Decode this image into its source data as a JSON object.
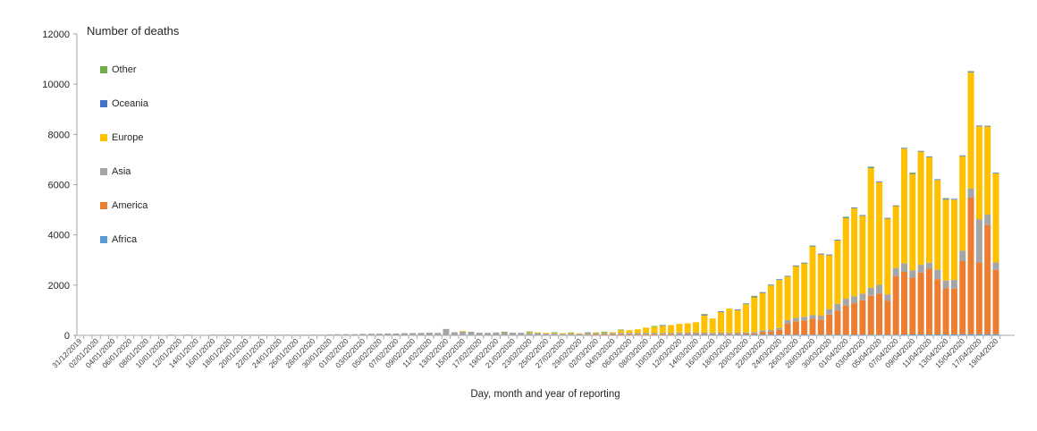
{
  "legend": {
    "title": "Number of deaths",
    "items": [
      {
        "label": "Other",
        "color": "#70AD47"
      },
      {
        "label": "Oceania",
        "color": "#4472C4"
      },
      {
        "label": "Europe",
        "color": "#FFC000"
      },
      {
        "label": "Asia",
        "color": "#A5A5A5"
      },
      {
        "label": "America",
        "color": "#ED7D31"
      },
      {
        "label": "Africa",
        "color": "#5B9BD5"
      }
    ]
  },
  "axes": {
    "x_title": "Day, month and year of reporting",
    "axis_color": "#A6A6A6",
    "tick_label_color": "#404040"
  },
  "chart_data": {
    "type": "bar",
    "stacked": true,
    "title": "Number of deaths",
    "xlabel": "Day, month and year of reporting",
    "ylabel": "",
    "ylim": [
      0,
      12000
    ],
    "y_ticks": [
      0,
      2000,
      4000,
      6000,
      8000,
      10000,
      12000
    ],
    "grid": false,
    "legend_position": "top-left",
    "x_label_every": 2,
    "categories": [
      "31/12/2019",
      "01/01/2020",
      "02/01/2020",
      "03/01/2020",
      "04/01/2020",
      "05/01/2020",
      "06/01/2020",
      "07/01/2020",
      "08/01/2020",
      "09/01/2020",
      "10/01/2020",
      "11/01/2020",
      "12/01/2020",
      "13/01/2020",
      "14/01/2020",
      "15/01/2020",
      "16/01/2020",
      "17/01/2020",
      "18/01/2020",
      "19/01/2020",
      "20/01/2020",
      "21/01/2020",
      "22/01/2020",
      "23/01/2020",
      "24/01/2020",
      "25/01/2020",
      "26/01/2020",
      "27/01/2020",
      "28/01/2020",
      "29/01/2020",
      "30/01/2020",
      "31/01/2020",
      "01/02/2020",
      "02/02/2020",
      "03/02/2020",
      "04/02/2020",
      "05/02/2020",
      "06/02/2020",
      "07/02/2020",
      "08/02/2020",
      "09/02/2020",
      "10/02/2020",
      "11/02/2020",
      "12/02/2020",
      "13/02/2020",
      "14/02/2020",
      "15/02/2020",
      "16/02/2020",
      "17/02/2020",
      "18/02/2020",
      "19/02/2020",
      "20/02/2020",
      "21/02/2020",
      "22/02/2020",
      "23/02/2020",
      "24/02/2020",
      "25/02/2020",
      "26/02/2020",
      "27/02/2020",
      "28/02/2020",
      "29/02/2020",
      "01/03/2020",
      "02/03/2020",
      "03/03/2020",
      "04/03/2020",
      "05/03/2020",
      "06/03/2020",
      "07/03/2020",
      "08/03/2020",
      "09/03/2020",
      "10/03/2020",
      "11/03/2020",
      "12/03/2020",
      "13/03/2020",
      "14/03/2020",
      "15/03/2020",
      "16/03/2020",
      "17/03/2020",
      "18/03/2020",
      "19/03/2020",
      "20/03/2020",
      "21/03/2020",
      "22/03/2020",
      "23/03/2020",
      "24/03/2020",
      "25/03/2020",
      "26/03/2020",
      "27/03/2020",
      "28/03/2020",
      "29/03/2020",
      "30/03/2020",
      "31/03/2020",
      "01/04/2020",
      "02/04/2020",
      "03/04/2020",
      "04/04/2020",
      "05/04/2020",
      "06/04/2020",
      "07/04/2020",
      "08/04/2020",
      "09/04/2020",
      "10/04/2020",
      "11/04/2020",
      "12/04/2020",
      "13/04/2020",
      "14/04/2020",
      "15/04/2020",
      "16/04/2020",
      "17/04/2020",
      "18/04/2020",
      "19/04/2020"
    ],
    "series": [
      {
        "name": "Africa",
        "color": "#5B9BD5",
        "values": [
          0,
          0,
          0,
          0,
          0,
          0,
          0,
          0,
          0,
          0,
          0,
          0,
          0,
          0,
          0,
          0,
          0,
          0,
          0,
          0,
          0,
          0,
          0,
          0,
          0,
          0,
          0,
          0,
          0,
          0,
          0,
          0,
          0,
          0,
          0,
          0,
          0,
          0,
          0,
          0,
          0,
          0,
          0,
          0,
          0,
          0,
          0,
          0,
          0,
          0,
          0,
          0,
          0,
          0,
          0,
          0,
          0,
          0,
          0,
          0,
          0,
          0,
          0,
          0,
          0,
          0,
          0,
          0,
          0,
          0,
          0,
          0,
          1,
          1,
          2,
          2,
          2,
          3,
          3,
          3,
          4,
          3,
          4,
          5,
          6,
          8,
          10,
          10,
          12,
          12,
          15,
          15,
          18,
          20,
          22,
          25,
          25,
          25,
          30,
          30,
          35,
          35,
          35,
          35,
          35,
          40,
          40,
          45,
          45,
          50,
          45
        ]
      },
      {
        "name": "America",
        "color": "#ED7D31",
        "values": [
          0,
          0,
          0,
          0,
          0,
          0,
          0,
          0,
          0,
          0,
          0,
          0,
          0,
          0,
          0,
          0,
          0,
          0,
          0,
          0,
          0,
          0,
          0,
          0,
          0,
          0,
          0,
          0,
          0,
          0,
          0,
          0,
          0,
          0,
          0,
          0,
          0,
          0,
          0,
          0,
          0,
          0,
          0,
          0,
          0,
          0,
          0,
          0,
          0,
          0,
          0,
          0,
          0,
          0,
          0,
          0,
          0,
          0,
          0,
          0,
          0,
          0,
          1,
          2,
          3,
          4,
          4,
          4,
          5,
          4,
          5,
          8,
          6,
          8,
          10,
          13,
          13,
          18,
          22,
          28,
          42,
          52,
          110,
          125,
          195,
          445,
          530,
          570,
          635,
          600,
          800,
          950,
          1155,
          1250,
          1370,
          1545,
          1630,
          1345,
          2320,
          2500,
          2260,
          2465,
          2620,
          2200,
          1845,
          1820,
          2915,
          5440,
          2855,
          4340,
          2560
        ]
      },
      {
        "name": "Asia",
        "color": "#A5A5A5",
        "values": [
          0,
          0,
          0,
          0,
          0,
          0,
          0,
          0,
          0,
          0,
          0,
          1,
          0,
          1,
          0,
          0,
          2,
          1,
          1,
          3,
          4,
          6,
          9,
          8,
          16,
          15,
          15,
          25,
          25,
          26,
          38,
          43,
          46,
          45,
          58,
          64,
          66,
          72,
          73,
          86,
          89,
          97,
          108,
          97,
          254,
          122,
          142,
          142,
          105,
          98,
          115,
          116,
          107,
          104,
          96,
          88,
          68,
          64,
          60,
          56,
          54,
          58,
          60,
          60,
          65,
          65,
          70,
          65,
          70,
          60,
          65,
          60,
          55,
          50,
          55,
          50,
          45,
          50,
          45,
          50,
          45,
          50,
          55,
          60,
          70,
          130,
          140,
          140,
          140,
          155,
          215,
          275,
          275,
          275,
          260,
          320,
          355,
          260,
          335,
          340,
          300,
          310,
          240,
          380,
          300,
          345,
          415,
          355,
          1725,
          415,
          300
        ]
      },
      {
        "name": "Europe",
        "color": "#FFC000",
        "values": [
          0,
          0,
          0,
          0,
          0,
          0,
          0,
          0,
          0,
          0,
          0,
          0,
          0,
          0,
          0,
          0,
          0,
          0,
          0,
          0,
          0,
          0,
          0,
          0,
          0,
          0,
          0,
          0,
          0,
          0,
          0,
          0,
          0,
          0,
          0,
          0,
          0,
          0,
          0,
          0,
          0,
          0,
          0,
          0,
          0,
          0,
          1,
          0,
          0,
          0,
          0,
          0,
          0,
          0,
          2,
          4,
          7,
          1,
          5,
          4,
          8,
          8,
          13,
          20,
          30,
          110,
          105,
          145,
          210,
          255,
          285,
          320,
          345,
          370,
          410,
          685,
          570,
          820,
          965,
          895,
          1125,
          1385,
          1495,
          1775,
          1910,
          1735,
          2055,
          2125,
          2740,
          2440,
          2145,
          2525,
          3205,
          3510,
          3100,
          4765,
          4085,
          3015,
          2460,
          4565,
          3830,
          4505,
          4200,
          3570,
          3225,
          3200,
          3765,
          4625,
          3700,
          3510,
          3540
        ]
      },
      {
        "name": "Oceania",
        "color": "#4472C4",
        "values": [
          0,
          0,
          0,
          0,
          0,
          0,
          0,
          0,
          0,
          0,
          0,
          0,
          0,
          0,
          0,
          0,
          0,
          0,
          0,
          0,
          0,
          0,
          0,
          0,
          0,
          0,
          0,
          0,
          0,
          0,
          0,
          0,
          0,
          0,
          0,
          0,
          0,
          0,
          0,
          0,
          0,
          0,
          0,
          0,
          0,
          0,
          0,
          0,
          0,
          0,
          0,
          0,
          0,
          0,
          0,
          0,
          0,
          0,
          0,
          0,
          0,
          1,
          0,
          0,
          0,
          0,
          0,
          0,
          0,
          0,
          1,
          0,
          0,
          0,
          0,
          1,
          0,
          1,
          0,
          1,
          1,
          2,
          2,
          2,
          3,
          2,
          3,
          3,
          3,
          3,
          4,
          4,
          5,
          5,
          5,
          5,
          5,
          4,
          5,
          5,
          5,
          5,
          5,
          4,
          5,
          5,
          5,
          5,
          5,
          5,
          5
        ]
      },
      {
        "name": "Other",
        "color": "#70AD47",
        "values": [
          0,
          0,
          0,
          0,
          0,
          0,
          0,
          0,
          0,
          0,
          0,
          0,
          0,
          0,
          0,
          0,
          0,
          0,
          0,
          0,
          0,
          0,
          0,
          0,
          0,
          0,
          0,
          0,
          0,
          0,
          0,
          0,
          0,
          0,
          0,
          0,
          0,
          0,
          0,
          0,
          0,
          0,
          0,
          0,
          0,
          0,
          0,
          0,
          0,
          0,
          0,
          2,
          0,
          0,
          1,
          0,
          0,
          1,
          0,
          1,
          0,
          0,
          0,
          1,
          0,
          1,
          0,
          0,
          0,
          1,
          0,
          0,
          0,
          0,
          0,
          1,
          0,
          0,
          0,
          0,
          0,
          1,
          0,
          0,
          0,
          0,
          0,
          0,
          0,
          0,
          0,
          0,
          1,
          0,
          0,
          2,
          0,
          0,
          0,
          0,
          1,
          0,
          0,
          0,
          2,
          0,
          0,
          2,
          0,
          0,
          0
        ]
      }
    ]
  }
}
